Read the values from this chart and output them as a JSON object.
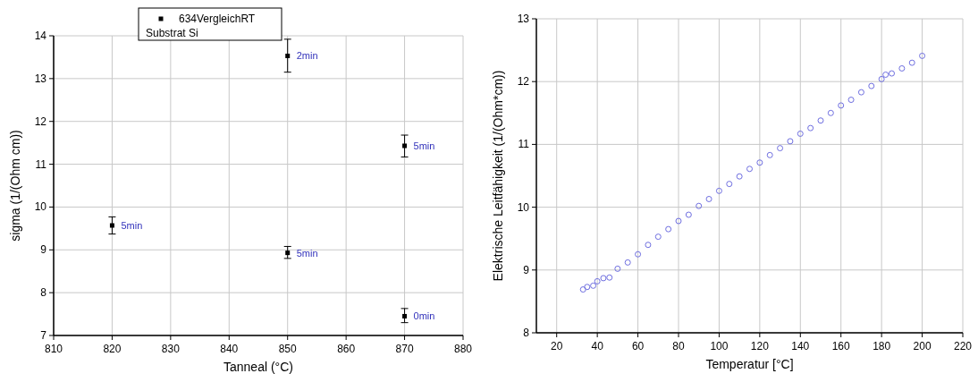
{
  "chart_data": [
    {
      "type": "scatter",
      "xlabel": "Tanneal (°C)",
      "ylabel": "sigma (1/(Ohm cm))",
      "xlim": [
        810,
        880
      ],
      "xticks": [
        810,
        820,
        830,
        840,
        850,
        860,
        870,
        880
      ],
      "ylim": [
        7,
        14
      ],
      "yticks": [
        7,
        8,
        9,
        10,
        11,
        12,
        13,
        14
      ],
      "grid": true,
      "legend": "top",
      "marker": "square",
      "annotations": [
        "Substrat Si",
        {
          "text": "5min",
          "x": 820,
          "y": 9.57
        },
        {
          "text": "2min",
          "x": 850,
          "y": 13.53
        },
        {
          "text": "5min",
          "x": 850,
          "y": 8.93
        },
        {
          "text": "5min",
          "x": 870,
          "y": 11.43
        },
        {
          "text": "0min",
          "x": 870,
          "y": 7.45
        }
      ],
      "series": [
        {
          "name": "634VergleichRT",
          "color": "#000000",
          "x": [
            820,
            850,
            850,
            870,
            870
          ],
          "values": [
            9.57,
            13.53,
            8.93,
            11.43,
            7.45
          ],
          "errors": [
            [
              9.37,
              9.77
            ],
            [
              13.15,
              13.92
            ],
            [
              8.8,
              9.08
            ],
            [
              11.17,
              11.68
            ],
            [
              7.3,
              7.63
            ]
          ]
        }
      ]
    },
    {
      "type": "scatter",
      "xlabel": "Temperatur [°C]",
      "ylabel": "Elektrische Leitfähigkeit (1/(Ohm*cm))",
      "xlim": [
        10,
        220
      ],
      "xticks": [
        20,
        40,
        60,
        80,
        100,
        120,
        140,
        160,
        180,
        200,
        220
      ],
      "ylim": [
        8,
        13
      ],
      "yticks": [
        8,
        9,
        10,
        11,
        12,
        13
      ],
      "grid": true,
      "marker": "circle",
      "series": [
        {
          "color": "#6f6fe0",
          "x": [
            33,
            35,
            38,
            40,
            43,
            46,
            50,
            55,
            60,
            65,
            70,
            75,
            80,
            85,
            90,
            95,
            100,
            105,
            110,
            115,
            120,
            125,
            130,
            135,
            140,
            145,
            150,
            155,
            160,
            165,
            170,
            175,
            180,
            182,
            185,
            190,
            195,
            200
          ],
          "values": [
            8.69,
            8.73,
            8.75,
            8.82,
            8.87,
            8.88,
            9.02,
            9.12,
            9.25,
            9.4,
            9.53,
            9.65,
            9.78,
            9.88,
            10.02,
            10.13,
            10.26,
            10.37,
            10.49,
            10.61,
            10.71,
            10.83,
            10.94,
            11.05,
            11.17,
            11.26,
            11.38,
            11.5,
            11.62,
            11.71,
            11.83,
            11.93,
            12.04,
            12.11,
            12.13,
            12.21,
            12.3,
            12.41
          ]
        }
      ]
    }
  ]
}
